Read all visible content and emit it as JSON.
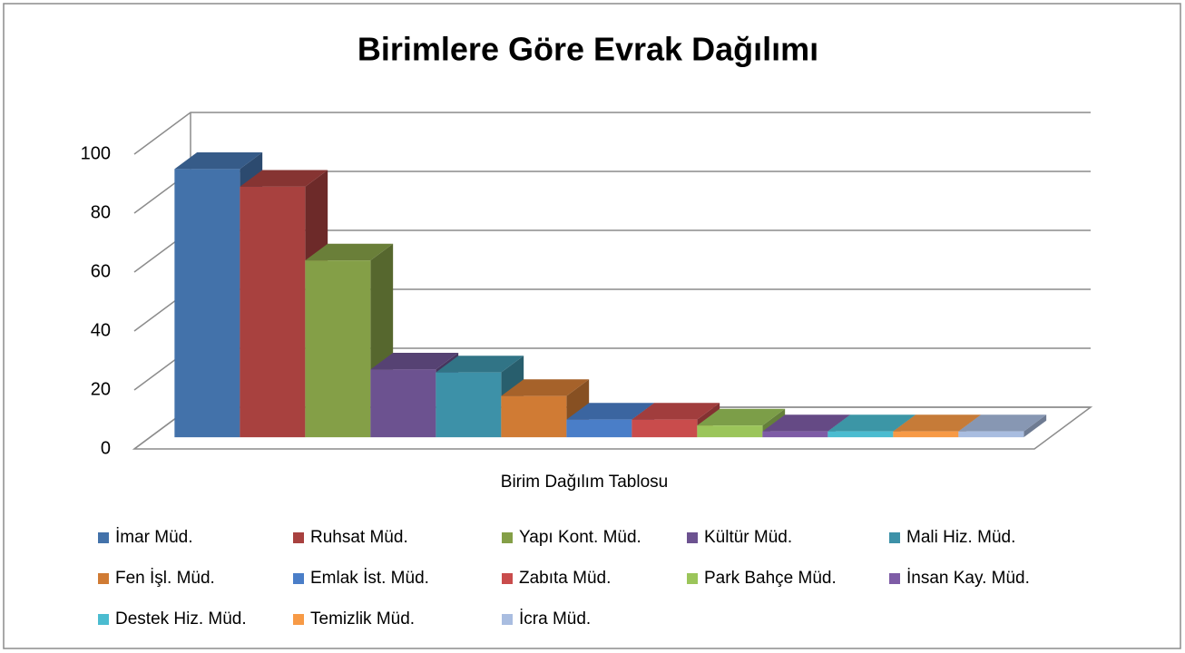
{
  "chart_data": {
    "type": "bar3d",
    "title": "Birimlere Göre Evrak Dağılımı",
    "categories": [
      "Birim Dağılım Tablosu"
    ],
    "ylim": [
      0,
      100
    ],
    "yticks": [
      0,
      20,
      40,
      60,
      80,
      100
    ],
    "grid": true,
    "legend": "bottom",
    "series": [
      {
        "name": "İmar Müd.",
        "color": "#4372aa",
        "values": [
          91
        ]
      },
      {
        "name": "Ruhsat Müd.",
        "color": "#a8413f",
        "values": [
          85
        ]
      },
      {
        "name": "Yapı Kont. Müd.",
        "color": "#849f47",
        "values": [
          60
        ]
      },
      {
        "name": "Kültür Müd.",
        "color": "#6c5290",
        "values": [
          23
        ]
      },
      {
        "name": "Mali Hiz. Müd.",
        "color": "#3d91a8",
        "values": [
          22
        ]
      },
      {
        "name": "Fen İşl. Müd.",
        "color": "#d07b34",
        "values": [
          14
        ]
      },
      {
        "name": "Emlak İst. Müd.",
        "color": "#4a7ec8",
        "values": [
          6
        ]
      },
      {
        "name": "Zabıta Müd.",
        "color": "#c94c4c",
        "values": [
          6
        ]
      },
      {
        "name": "Park Bahçe Müd.",
        "color": "#9bc55a",
        "values": [
          4
        ]
      },
      {
        "name": "İnsan Kay. Müd.",
        "color": "#7e5ca6",
        "values": [
          2
        ]
      },
      {
        "name": "Destek Hiz. Müd.",
        "color": "#4bbcd0",
        "values": [
          2
        ]
      },
      {
        "name": "Temizlik Müd.",
        "color": "#f79a46",
        "values": [
          2
        ]
      },
      {
        "name": "İcra Müd.",
        "color": "#a9bde0",
        "values": [
          2
        ]
      }
    ]
  }
}
